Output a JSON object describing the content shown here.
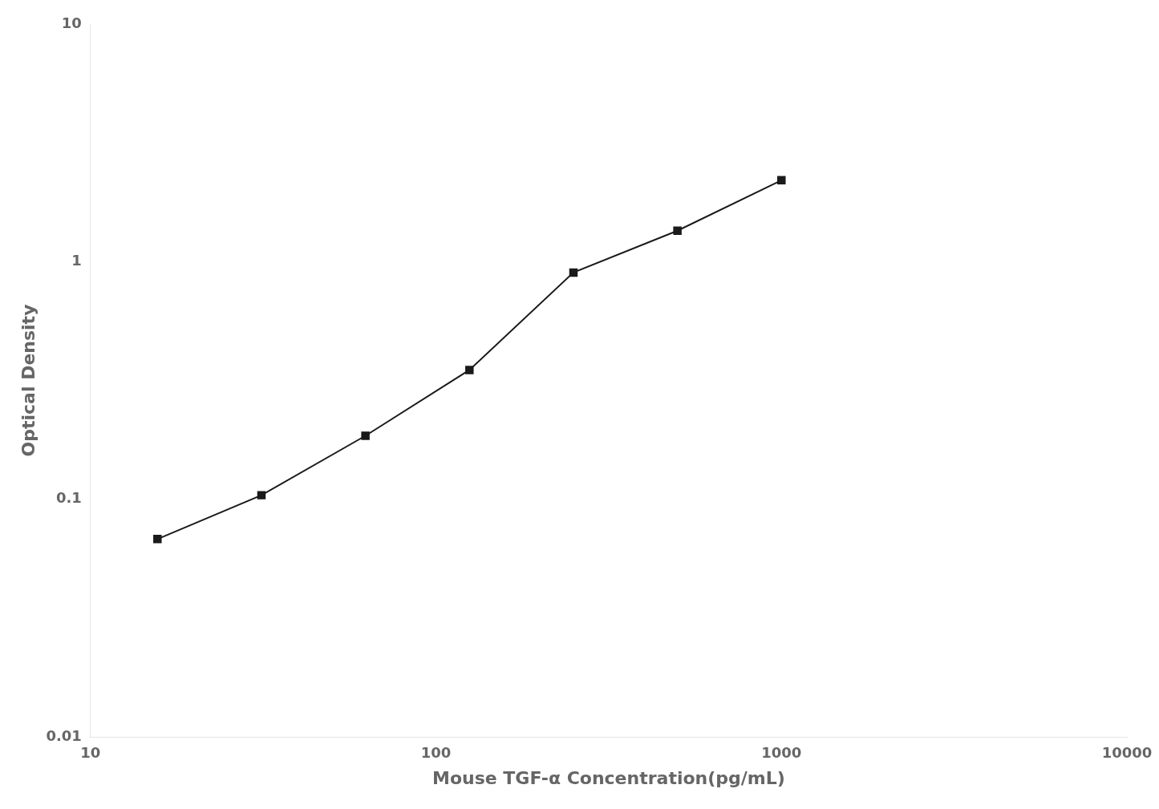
{
  "chart_data": {
    "type": "line",
    "x": [
      15.625,
      31.25,
      62.5,
      125,
      250,
      500,
      1000
    ],
    "values": [
      0.068,
      0.104,
      0.185,
      0.35,
      0.9,
      1.35,
      2.2
    ],
    "xlabel": "Mouse TGF-α Concentration(pg/mL)",
    "ylabel": "Optical Density",
    "xlim": [
      10,
      10000
    ],
    "ylim": [
      0.01,
      10
    ],
    "xticks": [
      10,
      100,
      1000,
      10000
    ],
    "yticks": [
      0.01,
      0.1,
      1,
      10
    ],
    "log": true,
    "grid": false,
    "color": "#1a1a1a",
    "marker": "square"
  }
}
